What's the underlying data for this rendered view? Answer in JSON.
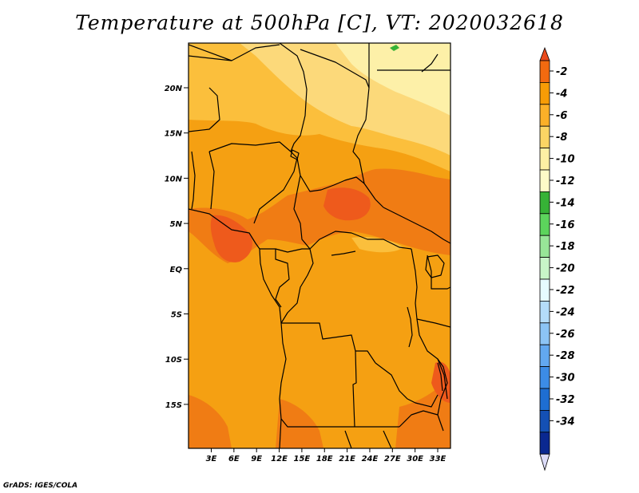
{
  "title": "Temperature at 500hPa [C], VT: 2020032618",
  "credit": "GrADS: IGES/COLA",
  "axes": {
    "lat_ticks": [
      "20N",
      "15N",
      "10N",
      "5N",
      "EQ",
      "5S",
      "10S",
      "15S"
    ],
    "lon_ticks": [
      "3E",
      "6E",
      "9E",
      "12E",
      "15E",
      "18E",
      "21E",
      "24E",
      "27E",
      "30E",
      "33E"
    ]
  },
  "colorbar": {
    "labels": [
      "-2",
      "-4",
      "-6",
      "-8",
      "-10",
      "-12",
      "-14",
      "-16",
      "-18",
      "-20",
      "-22",
      "-24",
      "-26",
      "-28",
      "-30",
      "-32",
      "-34"
    ],
    "colors": [
      "#ea4a1c",
      "#f26a10",
      "#f79c06",
      "#fbb028",
      "#fbd564",
      "#fdf0a4",
      "#fdfac8",
      "#36b236",
      "#5cd45c",
      "#98e698",
      "#c8f5c8",
      "#e6fbff",
      "#b4dcfa",
      "#8cc4f5",
      "#62a8f0",
      "#3c8ce6",
      "#1e6ed2",
      "#1450b4",
      "#0a2890",
      "#dcdcf8"
    ]
  },
  "field": {
    "background_color": "#f5a012",
    "warm_color": "#f07c14",
    "hot_color": "#ee5a1c",
    "cool_color": "#fbbf3c",
    "cold_color": "#fcd97a",
    "coldest_color": "#fdf0a8",
    "anomaly_color": "#36b236"
  },
  "borders_color": "#000000"
}
